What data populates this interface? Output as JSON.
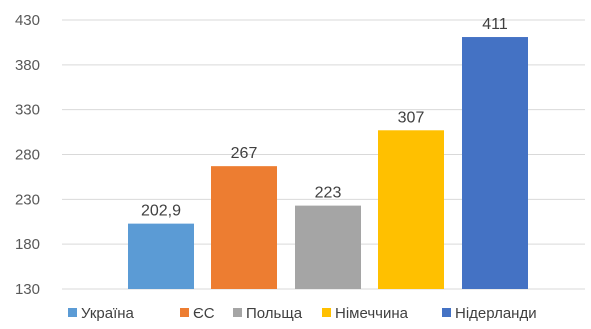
{
  "chart_data": {
    "type": "bar",
    "categories": [
      "Україна",
      "ЄС",
      "Польща",
      "Німеччина",
      "Нідерланди"
    ],
    "values": [
      202.9,
      267,
      223,
      307,
      411
    ],
    "value_labels": [
      "202,9",
      "267",
      "223",
      "307",
      "411"
    ],
    "colors": [
      "#5b9bd5",
      "#ed7d31",
      "#a5a5a5",
      "#ffc000",
      "#4472c4"
    ],
    "ylim": [
      130,
      430
    ],
    "yticks": [
      130,
      180,
      230,
      280,
      330,
      380,
      430
    ],
    "grid": true,
    "legend": "bottom",
    "title": "",
    "xlabel": "",
    "ylabel": ""
  }
}
